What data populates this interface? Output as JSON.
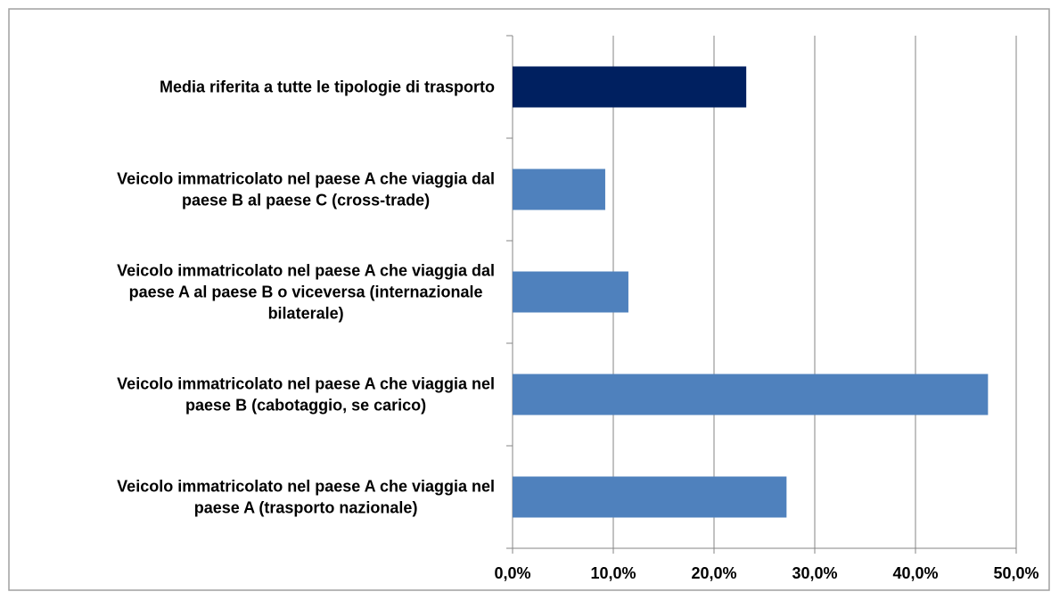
{
  "chart_data": {
    "type": "barh",
    "categories": [
      "Media riferita a tutte le tipologie di trasporto",
      "Veicolo immatricolato nel paese A che viaggia dal paese B al paese C (cross-trade)",
      "Veicolo immatricolato nel paese A che viaggia dal paese A al paese B o viceversa (internazionale bilaterale)",
      "Veicolo immatricolato nel paese A che viaggia nel paese B (cabotaggio, se carico)",
      "Veicolo immatricolato nel paese A che viaggia nel paese A (trasporto nazionale)"
    ],
    "values": [
      23.2,
      9.2,
      11.5,
      47.2,
      27.2
    ],
    "colors": [
      "#002060",
      "#4f81bd",
      "#4f81bd",
      "#4f81bd",
      "#4f81bd"
    ],
    "xlim": [
      0,
      50
    ],
    "xticks": [
      {
        "value": 0,
        "label": "0,0%"
      },
      {
        "value": 10,
        "label": "10,0%"
      },
      {
        "value": 20,
        "label": "20,0%"
      },
      {
        "value": 30,
        "label": "30,0%"
      },
      {
        "value": 40,
        "label": "40,0%"
      },
      {
        "value": 50,
        "label": "50,0%"
      }
    ],
    "grid": true
  }
}
